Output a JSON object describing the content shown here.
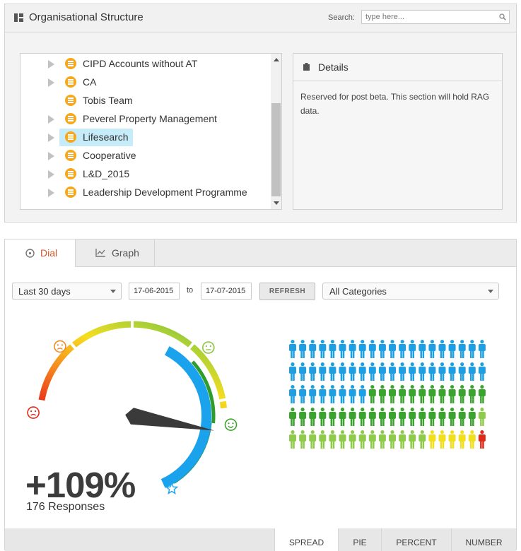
{
  "org": {
    "title": "Organisational Structure",
    "search_label": "Search:",
    "search_placeholder": "type here...",
    "tree": [
      {
        "label": "CIPD Accounts without AT",
        "expandable": true,
        "selected": false
      },
      {
        "label": "CA",
        "expandable": true,
        "selected": false
      },
      {
        "label": "Tobis Team",
        "expandable": false,
        "selected": false
      },
      {
        "label": "Peverel Property Management",
        "expandable": true,
        "selected": false
      },
      {
        "label": "Lifesearch",
        "expandable": true,
        "selected": true
      },
      {
        "label": "Cooperative",
        "expandable": true,
        "selected": false
      },
      {
        "label": "L&D_2015",
        "expandable": true,
        "selected": false
      },
      {
        "label": "Leadership Development Programme",
        "expandable": true,
        "selected": false
      }
    ]
  },
  "details": {
    "title": "Details",
    "text": "Reserved for post beta. This section will hold RAG data."
  },
  "tabs": [
    {
      "label": "Dial",
      "icon": "clock-icon",
      "active": true
    },
    {
      "label": "Graph",
      "icon": "line-chart-icon",
      "active": false
    }
  ],
  "filters": {
    "range": "Last 30 days",
    "from": "17-06-2015",
    "to_label": "to",
    "to": "17-07-2015",
    "refresh": "REFRESH",
    "category": "All Categories"
  },
  "dial": {
    "percent": "+109%",
    "responses": "176 Responses",
    "needle_fraction": 0.86,
    "value_arc_fraction": 0.83,
    "colors": {
      "red": "#e02a1b",
      "orange": "#f4901e",
      "yellow": "#f6dd1f",
      "lightgreen": "#8fcd3a",
      "green": "#43a52a",
      "blue": "#19a3ec"
    }
  },
  "spread": {
    "rows": [
      {
        "blue": 20,
        "green": 0,
        "lightgreen": 0,
        "yellow": 0,
        "red": 0
      },
      {
        "blue": 20,
        "green": 0,
        "lightgreen": 0,
        "yellow": 0,
        "red": 0
      },
      {
        "blue": 8,
        "green": 12,
        "lightgreen": 0,
        "yellow": 0,
        "red": 0
      },
      {
        "blue": 0,
        "green": 19,
        "lightgreen": 1,
        "yellow": 0,
        "red": 0
      },
      {
        "blue": 0,
        "green": 0,
        "lightgreen": 14,
        "yellow": 5,
        "red": 1
      }
    ],
    "colors": {
      "blue": "#1e9fe3",
      "green": "#3aa42f",
      "lightgreen": "#8fcb4a",
      "yellow": "#f2df1b",
      "red": "#e02a18"
    }
  },
  "bottom_tabs": [
    {
      "label": "SPREAD",
      "active": true
    },
    {
      "label": "PIE",
      "active": false
    },
    {
      "label": "PERCENT",
      "active": false
    },
    {
      "label": "NUMBER",
      "active": false
    }
  ]
}
